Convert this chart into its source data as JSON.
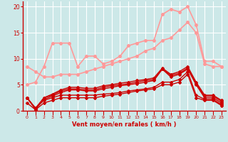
{
  "title": "",
  "xlabel": "Vent moyen/en rafales ( km/h )",
  "ylabel": "",
  "background_color": "#cce8e8",
  "grid_color": "#ffffff",
  "xlim": [
    -0.5,
    23.5
  ],
  "ylim": [
    0,
    21
  ],
  "yticks": [
    0,
    5,
    10,
    15,
    20
  ],
  "xticks": [
    0,
    1,
    2,
    3,
    4,
    5,
    6,
    7,
    8,
    9,
    10,
    11,
    12,
    13,
    14,
    15,
    16,
    17,
    18,
    19,
    20,
    21,
    22,
    23
  ],
  "lines": [
    {
      "x": [
        0,
        1,
        2,
        3,
        4,
        5,
        6,
        7,
        8,
        9,
        10,
        11,
        12,
        13,
        14,
        15,
        16,
        17,
        18,
        19,
        20,
        21,
        22,
        23
      ],
      "y": [
        5.0,
        5.5,
        8.5,
        13.0,
        13.0,
        13.0,
        8.5,
        10.5,
        10.5,
        9.0,
        9.5,
        10.5,
        12.5,
        13.0,
        13.5,
        13.5,
        18.5,
        19.5,
        19.0,
        20.0,
        16.5,
        9.5,
        9.5,
        8.5
      ],
      "color": "#ff9999",
      "lw": 1.2,
      "marker": "o",
      "ms": 2.5,
      "alpha": 1.0
    },
    {
      "x": [
        0,
        1,
        2,
        3,
        4,
        5,
        6,
        7,
        8,
        9,
        10,
        11,
        12,
        13,
        14,
        15,
        16,
        17,
        18,
        19,
        20,
        21,
        22,
        23
      ],
      "y": [
        8.5,
        7.5,
        6.5,
        6.5,
        7.0,
        7.0,
        7.0,
        7.5,
        8.0,
        8.5,
        9.0,
        9.5,
        10.0,
        10.5,
        11.5,
        12.0,
        13.5,
        14.0,
        15.5,
        17.0,
        15.0,
        9.0,
        8.5,
        8.5
      ],
      "color": "#ff9999",
      "lw": 1.2,
      "marker": "o",
      "ms": 2.5,
      "alpha": 1.0
    },
    {
      "x": [
        0,
        1,
        2,
        3,
        4,
        5,
        6,
        7,
        8,
        9,
        10,
        11,
        12,
        13,
        14,
        15,
        16,
        17,
        18,
        19,
        20,
        21,
        22,
        23
      ],
      "y": [
        2.5,
        0.3,
        2.2,
        2.8,
        3.5,
        4.0,
        4.0,
        3.8,
        3.8,
        4.2,
        4.5,
        4.8,
        5.0,
        5.2,
        5.5,
        5.8,
        8.0,
        6.5,
        7.0,
        8.0,
        5.0,
        2.5,
        2.5,
        1.5
      ],
      "color": "#cc0000",
      "lw": 1.0,
      "marker": "D",
      "ms": 2.0,
      "alpha": 1.0
    },
    {
      "x": [
        0,
        1,
        2,
        3,
        4,
        5,
        6,
        7,
        8,
        9,
        10,
        11,
        12,
        13,
        14,
        15,
        16,
        17,
        18,
        19,
        20,
        21,
        22,
        23
      ],
      "y": [
        2.5,
        0.3,
        2.5,
        3.0,
        3.8,
        4.2,
        4.2,
        4.0,
        4.0,
        4.5,
        4.8,
        5.0,
        5.2,
        5.5,
        5.8,
        6.0,
        8.0,
        6.8,
        7.2,
        8.2,
        5.2,
        2.8,
        2.8,
        1.8
      ],
      "color": "#cc0000",
      "lw": 1.0,
      "marker": "D",
      "ms": 2.0,
      "alpha": 1.0
    },
    {
      "x": [
        0,
        1,
        2,
        3,
        4,
        5,
        6,
        7,
        8,
        9,
        10,
        11,
        12,
        13,
        14,
        15,
        16,
        17,
        18,
        19,
        20,
        21,
        22,
        23
      ],
      "y": [
        2.5,
        0.5,
        2.5,
        3.2,
        4.0,
        4.5,
        4.5,
        4.3,
        4.3,
        4.8,
        5.0,
        5.3,
        5.5,
        5.8,
        6.0,
        6.3,
        8.2,
        7.0,
        7.5,
        8.5,
        5.5,
        3.0,
        3.0,
        2.0
      ],
      "color": "#cc0000",
      "lw": 1.0,
      "marker": "D",
      "ms": 2.0,
      "alpha": 1.0
    },
    {
      "x": [
        0,
        1,
        2,
        3,
        4,
        5,
        6,
        7,
        8,
        9,
        10,
        11,
        12,
        13,
        14,
        15,
        16,
        17,
        18,
        19,
        20,
        21,
        22,
        23
      ],
      "y": [
        2.5,
        0.5,
        2.0,
        2.5,
        3.0,
        3.0,
        3.0,
        3.0,
        3.0,
        3.2,
        3.3,
        3.5,
        3.8,
        4.0,
        4.2,
        4.5,
        5.5,
        5.5,
        6.0,
        7.5,
        3.0,
        2.2,
        2.2,
        1.2
      ],
      "color": "#cc0000",
      "lw": 1.0,
      "marker": "D",
      "ms": 2.0,
      "alpha": 1.0
    },
    {
      "x": [
        0,
        1,
        2,
        3,
        4,
        5,
        6,
        7,
        8,
        9,
        10,
        11,
        12,
        13,
        14,
        15,
        16,
        17,
        18,
        19,
        20,
        21,
        22,
        23
      ],
      "y": [
        1.5,
        0.2,
        1.5,
        2.0,
        2.5,
        2.5,
        2.5,
        2.5,
        2.5,
        2.8,
        3.0,
        3.2,
        3.5,
        3.8,
        4.0,
        4.2,
        5.0,
        5.0,
        5.5,
        7.0,
        2.5,
        2.0,
        2.0,
        1.0
      ],
      "color": "#cc0000",
      "lw": 1.0,
      "marker": "D",
      "ms": 2.0,
      "alpha": 1.0
    }
  ]
}
